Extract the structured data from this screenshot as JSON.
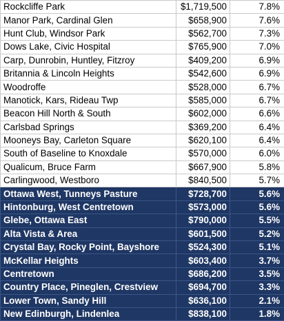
{
  "colors": {
    "highlight_bg": "#1f3764",
    "highlight_text": "#ffffff",
    "grid": "#c9c9c9"
  },
  "rows": [
    {
      "name": "Rockcliffe Park",
      "price": "$1,719,500",
      "pct": "7.8%"
    },
    {
      "name": "Manor Park, Cardinal Glen",
      "price": "$658,900",
      "pct": "7.6%"
    },
    {
      "name": "Hunt Club, Windsor Park",
      "price": "$562,700",
      "pct": "7.3%"
    },
    {
      "name": "Dows Lake, Civic Hospital",
      "price": "$765,900",
      "pct": "7.0%"
    },
    {
      "name": "Carp, Dunrobin, Huntley, Fitzroy",
      "price": "$409,200",
      "pct": "6.9%"
    },
    {
      "name": "Britannia & Lincoln Heights",
      "price": "$542,600",
      "pct": "6.9%"
    },
    {
      "name": "Woodroffe",
      "price": "$528,000",
      "pct": "6.7%"
    },
    {
      "name": "Manotick, Kars, Rideau Twp",
      "price": "$585,000",
      "pct": "6.7%"
    },
    {
      "name": "Beacon Hill North & South",
      "price": "$602,000",
      "pct": "6.6%"
    },
    {
      "name": "Carlsbad Springs",
      "price": "$369,200",
      "pct": "6.4%"
    },
    {
      "name": "Mooneys Bay, Carleton Square",
      "price": "$620,100",
      "pct": "6.4%"
    },
    {
      "name": "South of Baseline to Knoxdale",
      "price": "$570,000",
      "pct": "6.0%"
    },
    {
      "name": "Qualicum, Bruce Farm",
      "price": "$667,900",
      "pct": "5.8%"
    },
    {
      "name": "Carlingwood, Westboro",
      "price": "$840,500",
      "pct": "5.7%"
    },
    {
      "name": "Ottawa West, Tunneys Pasture",
      "price": "$728,700",
      "pct": "5.6%"
    },
    {
      "name": "Hintonburg, West Centretown",
      "price": "$573,000",
      "pct": "5.6%"
    },
    {
      "name": "Glebe, Ottawa East",
      "price": "$790,000",
      "pct": "5.5%"
    },
    {
      "name": "Alta Vista & Area",
      "price": "$601,500",
      "pct": "5.2%"
    },
    {
      "name": "Crystal Bay, Rocky Point, Bayshore",
      "price": "$524,300",
      "pct": "5.1%"
    },
    {
      "name": "McKellar Heights",
      "price": "$603,400",
      "pct": "3.7%"
    },
    {
      "name": "Centretown",
      "price": "$686,200",
      "pct": "3.5%"
    },
    {
      "name": "Country Place, Pineglen, Crestview",
      "price": "$694,700",
      "pct": "3.3%"
    },
    {
      "name": "Lower Town, Sandy Hill",
      "price": "$636,100",
      "pct": "2.1%"
    },
    {
      "name": "New Edinburgh, Lindenlea",
      "price": "$838,100",
      "pct": "1.8%"
    }
  ]
}
